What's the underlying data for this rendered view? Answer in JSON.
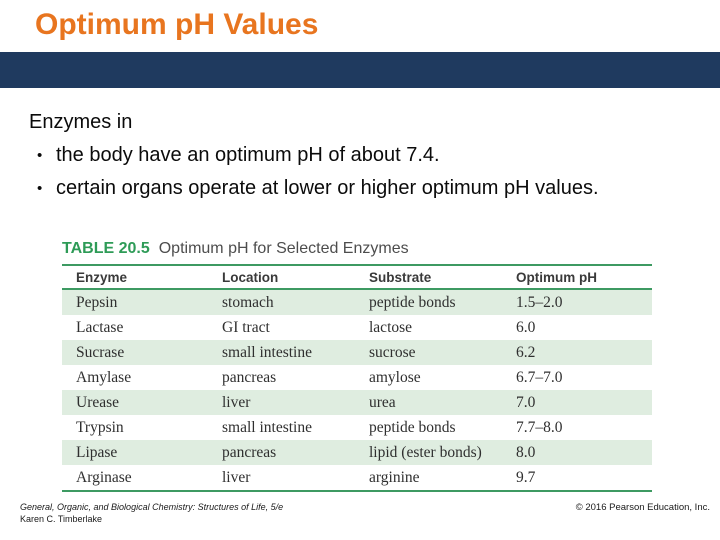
{
  "slide": {
    "title": "Optimum pH Values",
    "intro": "Enzymes in",
    "bullet_char": "•",
    "bullets": [
      "the body have an optimum pH of about 7.4.",
      "certain organs operate at lower or higher optimum pH values."
    ]
  },
  "table": {
    "label": "TABLE 20.5",
    "title": "Optimum pH for Selected Enzymes",
    "columns": [
      "Enzyme",
      "Location",
      "Substrate",
      "Optimum pH"
    ],
    "rows": [
      [
        "Pepsin",
        "stomach",
        "peptide bonds",
        "1.5–2.0"
      ],
      [
        "Lactase",
        "GI tract",
        "lactose",
        "6.0"
      ],
      [
        "Sucrase",
        "small intestine",
        "sucrose",
        "6.2"
      ],
      [
        "Amylase",
        "pancreas",
        "amylose",
        "6.7–7.0"
      ],
      [
        "Urease",
        "liver",
        "urea",
        "7.0"
      ],
      [
        "Trypsin",
        "small intestine",
        "peptide bonds",
        "7.7–8.0"
      ],
      [
        "Lipase",
        "pancreas",
        "lipid (ester bonds)",
        "8.0"
      ],
      [
        "Arginase",
        "liver",
        "arginine",
        "9.7"
      ]
    ]
  },
  "footer": {
    "book_title": "General, Organic, and Biological Chemistry: Structures of Life, 5/e",
    "author": "Karen C. Timberlake",
    "copyright": "© 2016 Pearson Education, Inc."
  },
  "colors": {
    "title_orange": "#E8751F",
    "bar_navy": "#1F3A5F",
    "table_rule_green": "#3D9A62",
    "table_label_green": "#2E9B57",
    "row_stripe_green": "#DFEDE0"
  }
}
